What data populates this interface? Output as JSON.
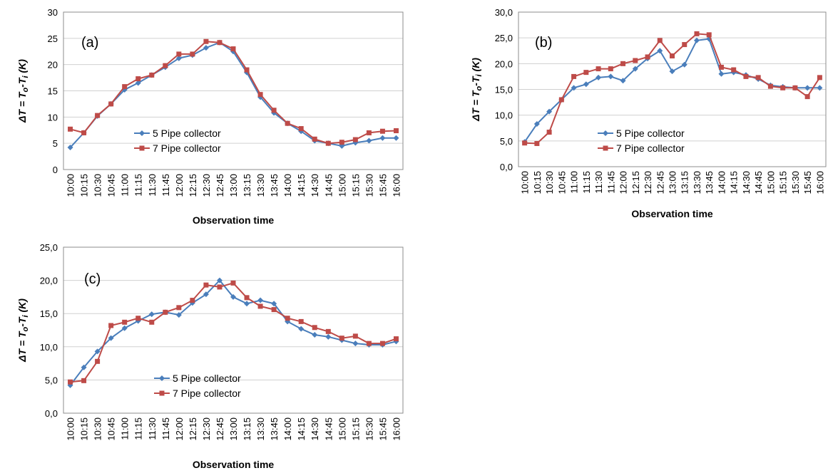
{
  "chart_data": [
    {
      "type": "line",
      "panel_label": "(a)",
      "xlabel": "Observation time",
      "ylabel_prefix": "ΔT = T",
      "ylabel_sub_o": "o",
      "ylabel_mid": "-T",
      "ylabel_sub_i": "i",
      "ylabel_suffix": " (K)",
      "ylim": [
        0,
        30
      ],
      "ytick_step": 5,
      "ytick_decimals": 0,
      "grid": true,
      "legend": "center-bottom",
      "categories": [
        "10:00",
        "10:15",
        "10:30",
        "10:45",
        "11:00",
        "11:15",
        "11:30",
        "11:45",
        "12:00",
        "12:15",
        "12:30",
        "12:45",
        "13:00",
        "13:15",
        "13:30",
        "13:45",
        "14:00",
        "14:15",
        "14:30",
        "14:45",
        "15:00",
        "15:15",
        "15:30",
        "15:45",
        "16:00"
      ],
      "series": [
        {
          "name": "5 Pipe collector",
          "color": "#4a7ebb",
          "marker": "diamond",
          "values": [
            4.2,
            7.0,
            10.2,
            12.5,
            15.2,
            16.5,
            18.0,
            19.5,
            21.2,
            21.8,
            23.2,
            24.2,
            22.5,
            18.5,
            13.8,
            10.8,
            8.8,
            7.3,
            5.5,
            5.0,
            4.5,
            5.1,
            5.5,
            6.0,
            6.0
          ]
        },
        {
          "name": "7 Pipe collector",
          "color": "#be4b48",
          "marker": "square",
          "values": [
            7.7,
            7.0,
            10.3,
            12.5,
            15.8,
            17.3,
            18.0,
            19.8,
            22.0,
            22.0,
            24.4,
            24.2,
            23.0,
            19.0,
            14.3,
            11.3,
            8.8,
            7.8,
            5.8,
            5.0,
            5.2,
            5.7,
            7.0,
            7.3,
            7.4
          ]
        }
      ]
    },
    {
      "type": "line",
      "panel_label": "(b)",
      "xlabel": "Observation time",
      "ylabel_prefix": "ΔT = T",
      "ylabel_sub_o": "o",
      "ylabel_mid": "-T",
      "ylabel_sub_i": "i",
      "ylabel_suffix": " (K)",
      "ylim": [
        0,
        30
      ],
      "ytick_step": 5,
      "ytick_decimals": 1,
      "grid": true,
      "legend": "center-bottom",
      "categories": [
        "10:00",
        "10:15",
        "10:30",
        "10:45",
        "11:00",
        "11:15",
        "11:30",
        "11:45",
        "12:00",
        "12:15",
        "12:30",
        "12:45",
        "13:00",
        "13:15",
        "13:30",
        "13:45",
        "14:00",
        "14:15",
        "14:30",
        "14:45",
        "15:00",
        "15:15",
        "15:30",
        "15:45",
        "16:00"
      ],
      "series": [
        {
          "name": "5 Pipe collector",
          "color": "#4a7ebb",
          "marker": "diamond",
          "values": [
            4.8,
            8.3,
            10.7,
            13.0,
            15.3,
            16.0,
            17.3,
            17.5,
            16.7,
            19.0,
            21.0,
            22.5,
            18.5,
            19.8,
            24.5,
            24.8,
            18.0,
            18.3,
            17.8,
            17.0,
            15.8,
            15.5,
            15.3,
            15.3,
            15.3
          ]
        },
        {
          "name": "7 Pipe collector",
          "color": "#be4b48",
          "marker": "square",
          "values": [
            4.6,
            4.5,
            6.7,
            13.0,
            17.5,
            18.3,
            19.0,
            19.0,
            20.0,
            20.6,
            21.3,
            24.5,
            21.5,
            23.7,
            25.8,
            25.6,
            19.3,
            18.8,
            17.5,
            17.3,
            15.6,
            15.3,
            15.3,
            13.6,
            17.3
          ]
        }
      ]
    },
    {
      "type": "line",
      "panel_label": "(c)",
      "xlabel": "Observation time",
      "ylabel_prefix": "ΔT = T",
      "ylabel_sub_o": "o",
      "ylabel_mid": "-T",
      "ylabel_sub_i": "i",
      "ylabel_suffix": " (K)",
      "ylim": [
        0,
        25
      ],
      "ytick_step": 5,
      "ytick_decimals": 1,
      "grid": true,
      "legend": "center-bottom",
      "categories": [
        "10:00",
        "10:15",
        "10:30",
        "10:45",
        "11:00",
        "11:15",
        "11:30",
        "11:45",
        "12:00",
        "12:15",
        "12:30",
        "12:45",
        "13:00",
        "13:15",
        "13:30",
        "13:45",
        "14:00",
        "14:15",
        "14:30",
        "14:45",
        "15:00",
        "15:15",
        "15:30",
        "15:45",
        "16:00"
      ],
      "series": [
        {
          "name": "5 Pipe collector",
          "color": "#4a7ebb",
          "marker": "diamond",
          "values": [
            4.2,
            6.9,
            9.3,
            11.3,
            12.8,
            13.9,
            14.9,
            15.2,
            14.8,
            16.6,
            17.9,
            20.0,
            17.5,
            16.5,
            17.0,
            16.5,
            13.8,
            12.7,
            11.8,
            11.5,
            11.0,
            10.5,
            10.3,
            10.3,
            10.8
          ]
        },
        {
          "name": "7 Pipe collector",
          "color": "#be4b48",
          "marker": "square",
          "values": [
            4.7,
            4.9,
            7.8,
            13.2,
            13.7,
            14.3,
            13.7,
            15.2,
            15.9,
            17.0,
            19.3,
            19.0,
            19.6,
            17.4,
            16.1,
            15.6,
            14.3,
            13.8,
            12.9,
            12.3,
            11.3,
            11.6,
            10.5,
            10.5,
            11.2
          ]
        }
      ]
    }
  ]
}
